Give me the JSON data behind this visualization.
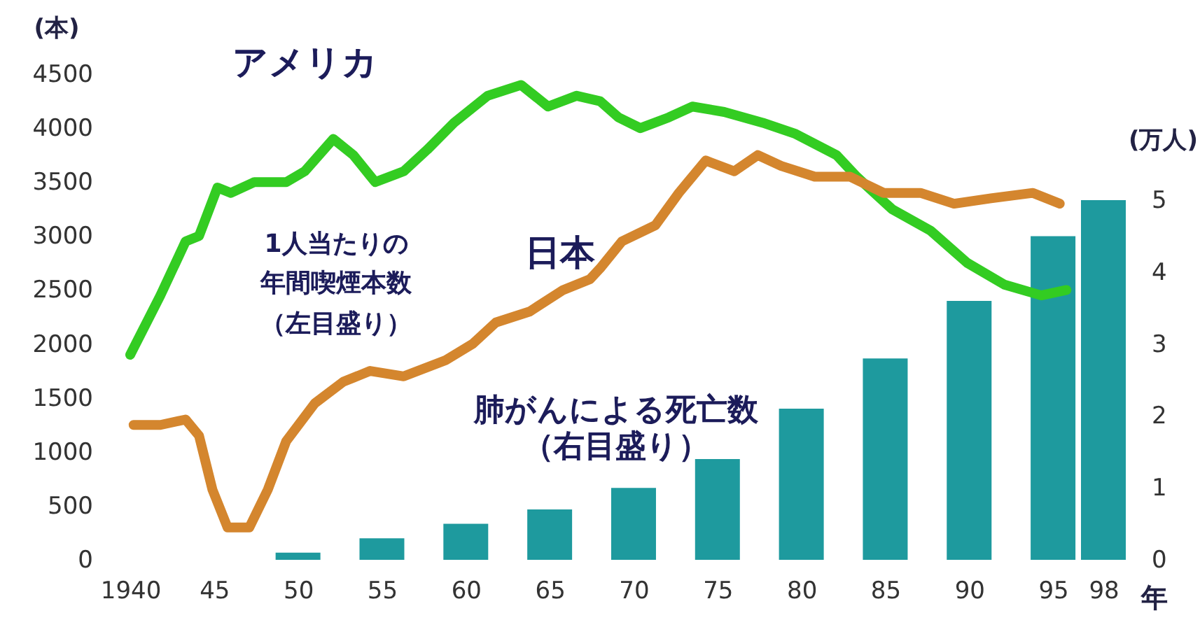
{
  "chart_data": {
    "type": "line",
    "xlabel": "年",
    "ylabel": "(本)",
    "y2label": "(万人)",
    "annotations": [
      "1人当たりの",
      "年間喫煙本数",
      "（左目盛り）",
      "（右目盛り）"
    ],
    "xlim": [
      1940,
      1998
    ],
    "xticks": [
      {
        "value": 1940,
        "label": "1940"
      },
      {
        "value": 1945,
        "label": "45"
      },
      {
        "value": 1950,
        "label": "50"
      },
      {
        "value": 1955,
        "label": "55"
      },
      {
        "value": 1960,
        "label": "60"
      },
      {
        "value": 1965,
        "label": "65"
      },
      {
        "value": 1970,
        "label": "70"
      },
      {
        "value": 1975,
        "label": "75"
      },
      {
        "value": 1980,
        "label": "80"
      },
      {
        "value": 1985,
        "label": "85"
      },
      {
        "value": 1990,
        "label": "90"
      },
      {
        "value": 1995,
        "label": "95"
      },
      {
        "value": 1998,
        "label": "98"
      }
    ],
    "ylim": [
      0,
      4500
    ],
    "yticks": [
      0,
      500,
      1000,
      1500,
      2000,
      2500,
      3000,
      3500,
      4000,
      4500
    ],
    "y2lim": [
      0,
      5
    ],
    "y2ticks": [
      0,
      1,
      2,
      3,
      4,
      5
    ],
    "series": [
      {
        "name": "肺がんによる死亡数",
        "type": "bar",
        "axis": "y2",
        "color": "#1e9a9e",
        "x": [
          1950,
          1955,
          1960,
          1965,
          1970,
          1975,
          1980,
          1985,
          1990,
          1995,
          1998
        ],
        "values": [
          0.1,
          0.3,
          0.5,
          0.7,
          1.0,
          1.4,
          2.1,
          2.8,
          3.6,
          4.5,
          5.0
        ]
      },
      {
        "name": "アメリカ",
        "color": "#33cc22",
        "x": [
          1940,
          1941.8,
          1943.3,
          1944.1,
          1945.2,
          1946,
          1947.4,
          1949.3,
          1950.4,
          1952.1,
          1953.3,
          1954.6,
          1956.3,
          1957.7,
          1959.3,
          1961.3,
          1963.3,
          1964.9,
          1966.6,
          1968,
          1969.1,
          1970.4,
          1972.1,
          1973.5,
          1975.4,
          1977.7,
          1979.6,
          1982.1,
          1983.3,
          1985.4,
          1987.7,
          1989.9,
          1992.1,
          1994.3,
          1995.8
        ],
        "values": [
          1900,
          2450,
          2950,
          3000,
          3450,
          3400,
          3500,
          3500,
          3600,
          3900,
          3750,
          3500,
          3600,
          3800,
          4050,
          4300,
          4400,
          4200,
          4300,
          4250,
          4100,
          4000,
          4100,
          4200,
          4150,
          4050,
          3950,
          3750,
          3550,
          3250,
          3050,
          2750,
          2550,
          2450,
          2500
        ]
      },
      {
        "name": "日本",
        "color": "#d4862e",
        "x": [
          1940.2,
          1941.8,
          1943.3,
          1944.1,
          1944.9,
          1945.8,
          1947.1,
          1948.2,
          1949.3,
          1951,
          1952.7,
          1954.3,
          1956.3,
          1958.8,
          1960.4,
          1961.8,
          1963.8,
          1965.8,
          1967.4,
          1968,
          1969.3,
          1971.3,
          1972.7,
          1974.3,
          1976,
          1977.4,
          1978.8,
          1980.8,
          1982.9,
          1984.9,
          1987.1,
          1989.1,
          1991.3,
          1993.8,
          1995.4
        ],
        "values": [
          1250,
          1250,
          1300,
          1150,
          650,
          300,
          300,
          650,
          1100,
          1450,
          1650,
          1750,
          1700,
          1850,
          2000,
          2200,
          2300,
          2500,
          2600,
          2700,
          2950,
          3100,
          3400,
          3700,
          3600,
          3750,
          3650,
          3550,
          3550,
          3400,
          3400,
          3300,
          3350,
          3400,
          3300
        ]
      }
    ]
  }
}
